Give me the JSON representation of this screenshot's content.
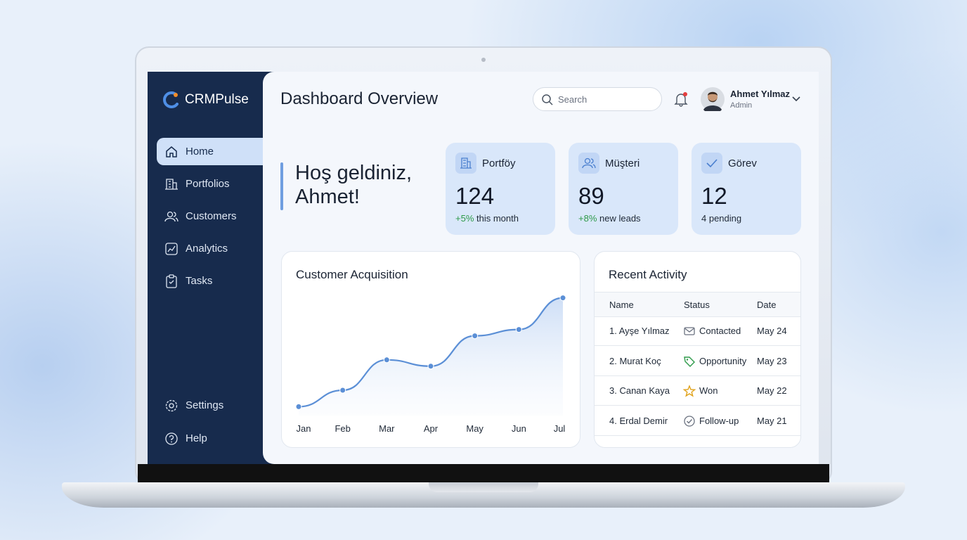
{
  "sidebar": {
    "brand": "CRMPulse",
    "nav": [
      "Home",
      "Portfolios",
      "Customers",
      "Analytics",
      "Tasks"
    ],
    "footer_nav": [
      "Settings",
      "Help"
    ]
  },
  "header": {
    "title": "Dashboard Overview",
    "search_placeholder": "Search",
    "user": {
      "name": "Ahmet Yılmaz",
      "role": "Admin"
    }
  },
  "welcome": "Hoş geldiniz, Ahmet!",
  "stats": [
    {
      "label": "Portföy",
      "value": 124,
      "change": "+5%",
      "note": "this month"
    },
    {
      "label": "Müşteri",
      "value": 89,
      "change": "+8%",
      "note": "new leads"
    },
    {
      "label": "Görev",
      "value": 12,
      "note": "4 pending"
    }
  ],
  "chart_data": {
    "type": "line",
    "title": "Customer Acquisition",
    "categories": [
      "Jan",
      "Feb",
      "Mar",
      "Apr",
      "May",
      "Jun",
      "Jul"
    ],
    "values": [
      7,
      20,
      44,
      39,
      63,
      68,
      93
    ],
    "ylim": [
      0,
      100
    ],
    "color": "#5b8fd6"
  },
  "activity": {
    "title": "Recent Activity",
    "columns": [
      "Name",
      "Status",
      "Date"
    ],
    "rows": [
      [
        "1. Ayşe Yılmaz",
        "Contacted",
        "May 24"
      ],
      [
        "2. Murat Koç",
        "Opportunity",
        "May 23"
      ],
      [
        "3. Canan Kaya",
        "Won",
        "May 22"
      ],
      [
        "4. Erdal Demir",
        "Follow-up",
        "May 21"
      ]
    ]
  }
}
